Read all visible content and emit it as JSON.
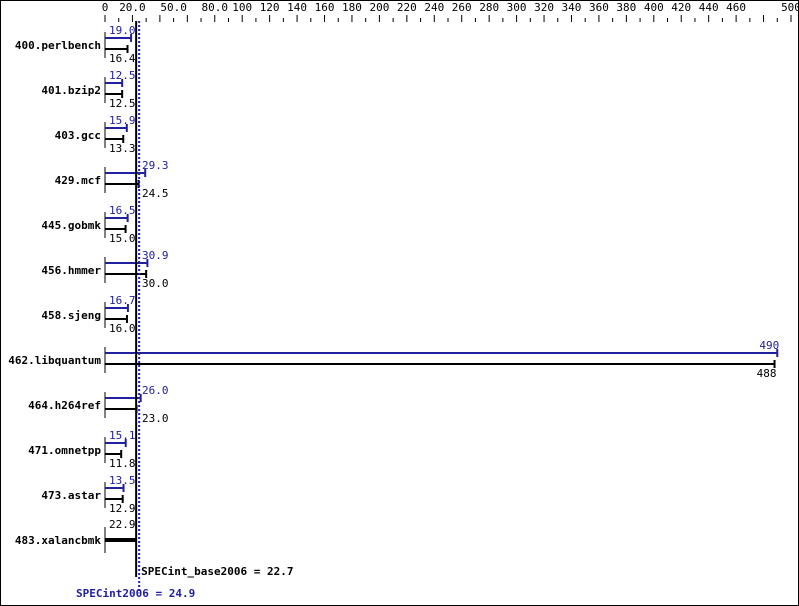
{
  "chart_data": {
    "type": "bar",
    "orientation": "horizontal",
    "xlim": [
      0,
      500
    ],
    "tick_labels": [
      "0",
      "20.0",
      "50.0",
      "80.0",
      "100",
      "120",
      "140",
      "160",
      "180",
      "200",
      "220",
      "240",
      "260",
      "280",
      "300",
      "320",
      "340",
      "360",
      "380",
      "400",
      "420",
      "440",
      "460",
      "500"
    ],
    "tick_values": [
      0,
      20,
      50,
      80,
      100,
      120,
      140,
      160,
      180,
      200,
      220,
      240,
      260,
      280,
      300,
      320,
      340,
      360,
      380,
      400,
      420,
      440,
      460,
      500
    ],
    "categories": [
      "400.perlbench",
      "401.bzip2",
      "403.gcc",
      "429.mcf",
      "445.gobmk",
      "456.hmmer",
      "458.sjeng",
      "462.libquantum",
      "464.h264ref",
      "471.omnetpp",
      "473.astar",
      "483.xalancbmk"
    ],
    "series": [
      {
        "name": "SPECint2006",
        "color": "#2020a0",
        "values": [
          19.0,
          12.5,
          15.9,
          29.3,
          16.5,
          30.9,
          16.7,
          490,
          26.0,
          15.1,
          13.5,
          null
        ],
        "labels": [
          "19.0",
          "12.5",
          "15.9",
          "29.3",
          "16.5",
          "30.9",
          "16.7",
          "490",
          "26.0",
          "15.1",
          "13.5",
          ""
        ]
      },
      {
        "name": "SPECint_base2006",
        "color": "#000000",
        "values": [
          16.4,
          12.5,
          13.3,
          24.5,
          15.0,
          30.0,
          16.0,
          488,
          23.0,
          11.8,
          12.9,
          22.9
        ],
        "labels": [
          "16.4",
          "12.5",
          "13.3",
          "24.5",
          "15.0",
          "30.0",
          "16.0",
          "488",
          "23.0",
          "11.8",
          "12.9",
          "22.9"
        ]
      }
    ],
    "reference_lines": [
      {
        "label": "SPECint_base2006 = 22.7",
        "value": 22.7,
        "color": "#000000",
        "style": "solid"
      },
      {
        "label": "SPECint2006 = 24.9",
        "value": 24.9,
        "color": "#2020a0",
        "style": "dotted"
      }
    ]
  }
}
